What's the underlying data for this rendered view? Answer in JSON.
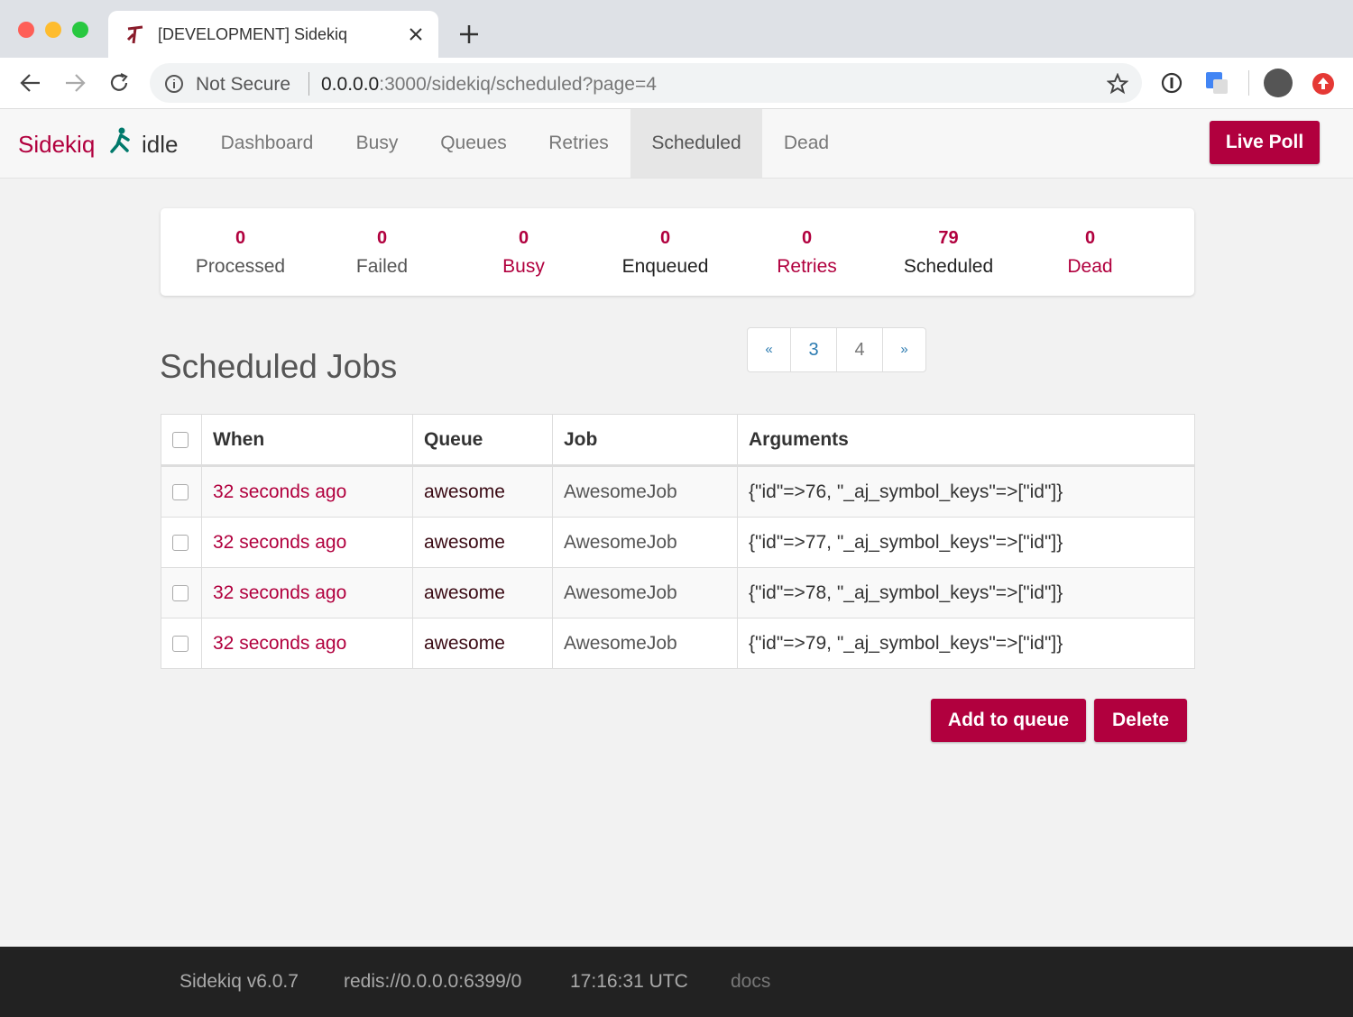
{
  "browser": {
    "tab_title": "[DEVELOPMENT] Sidekiq",
    "security": "Not Secure",
    "url_host": "0.0.0.0",
    "url_rest": ":3000/sidekiq/scheduled?page=4"
  },
  "nav": {
    "brand": "Sidekiq",
    "status": "idle",
    "links": [
      "Dashboard",
      "Busy",
      "Queues",
      "Retries",
      "Scheduled",
      "Dead"
    ],
    "live_poll": "Live Poll"
  },
  "stats": [
    {
      "value": 0,
      "label": "Processed"
    },
    {
      "value": 0,
      "label": "Failed"
    },
    {
      "value": 0,
      "label": "Busy"
    },
    {
      "value": 0,
      "label": "Enqueued"
    },
    {
      "value": 0,
      "label": "Retries"
    },
    {
      "value": 79,
      "label": "Scheduled"
    },
    {
      "value": 0,
      "label": "Dead"
    }
  ],
  "page_title": "Scheduled Jobs",
  "pagination": [
    "«",
    "3",
    "4",
    "»"
  ],
  "table": {
    "headers": [
      "When",
      "Queue",
      "Job",
      "Arguments"
    ],
    "rows": [
      [
        "32 seconds ago",
        "awesome",
        "AwesomeJob",
        "{\"id\"=>76, \"_aj_symbol_keys\"=>[\"id\"]}"
      ],
      [
        "32 seconds ago",
        "awesome",
        "AwesomeJob",
        "{\"id\"=>77, \"_aj_symbol_keys\"=>[\"id\"]}"
      ],
      [
        "32 seconds ago",
        "awesome",
        "AwesomeJob",
        "{\"id\"=>78, \"_aj_symbol_keys\"=>[\"id\"]}"
      ],
      [
        "32 seconds ago",
        "awesome",
        "AwesomeJob",
        "{\"id\"=>79, \"_aj_symbol_keys\"=>[\"id\"]}"
      ]
    ]
  },
  "actions": [
    "Add to queue",
    "Delete"
  ],
  "footer": [
    "Sidekiq v6.0.7",
    "redis://0.0.0.0:6399/0",
    "17:16:31 UTC",
    "docs"
  ]
}
